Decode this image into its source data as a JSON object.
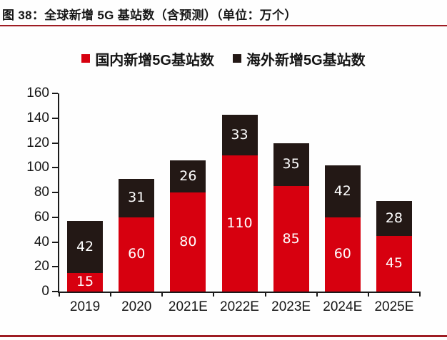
{
  "page": {
    "caption": "图 38：全球新增 5G 基站数（含预测）（单位：万个）"
  },
  "chart_data": {
    "type": "bar",
    "stacked": true,
    "categories": [
      "2019",
      "2020",
      "2021E",
      "2022E",
      "2023E",
      "2024E",
      "2025E"
    ],
    "series": [
      {
        "name": "国内新增5G基站数",
        "color": "#D7000F",
        "values": [
          15,
          60,
          80,
          110,
          85,
          60,
          45
        ]
      },
      {
        "name": "海外新增5G基站数",
        "color": "#231815",
        "values": [
          42,
          31,
          26,
          33,
          35,
          42,
          28
        ]
      }
    ],
    "ylim": [
      0,
      160
    ],
    "yticks": [
      0,
      20,
      40,
      60,
      80,
      100,
      120,
      140,
      160
    ],
    "grid": false,
    "legend_position": "top",
    "value_labels_color": "#ffffff"
  },
  "style": {
    "rule_color": "#9E1C23",
    "axis_color": "#1a1a1a",
    "value_label_on_bars": "white numbers centered inside each stacked segment"
  }
}
